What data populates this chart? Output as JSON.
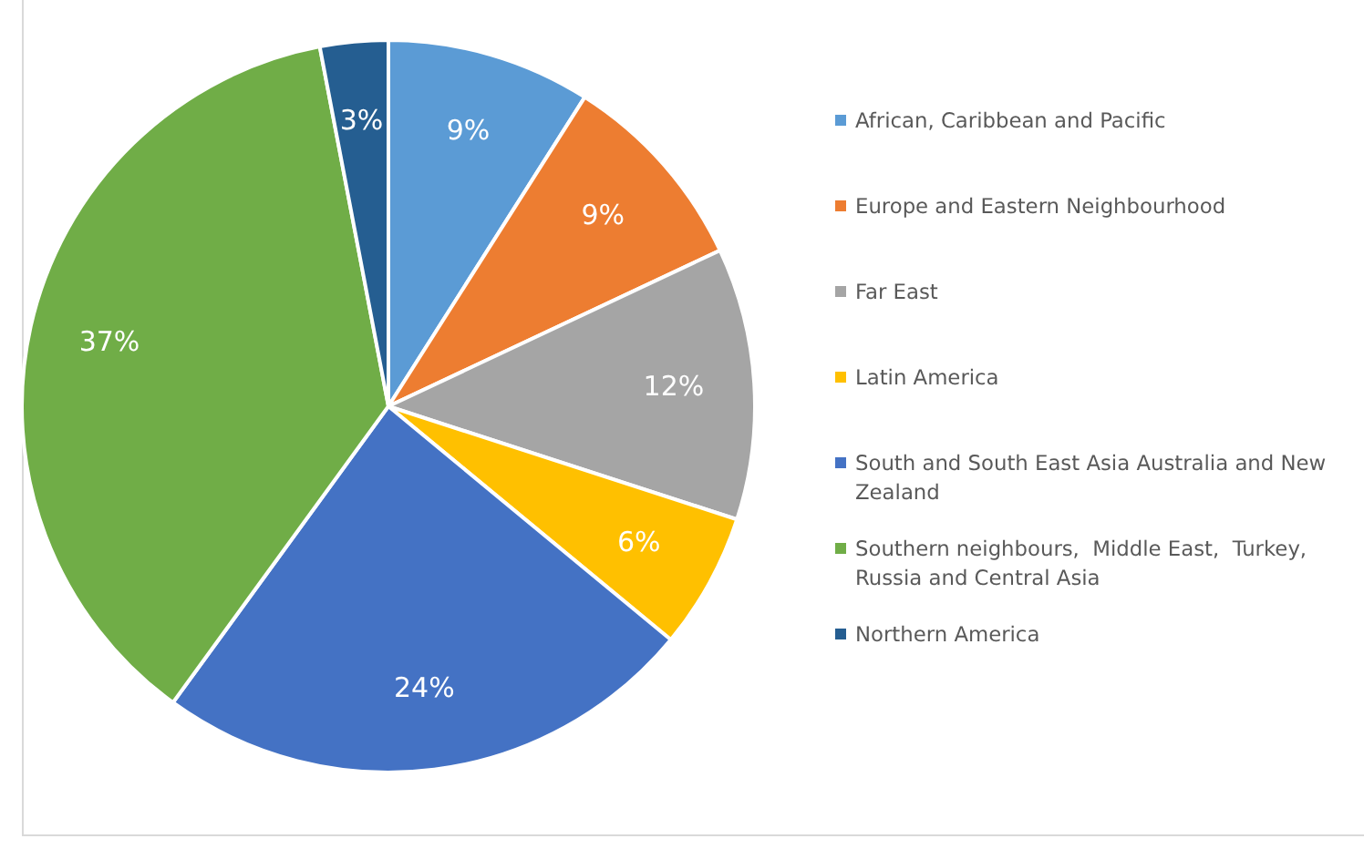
{
  "chart_data": {
    "type": "pie",
    "categories": [
      "African, Caribbean and Pacific",
      "Europe and Eastern Neighbourhood",
      "Far East",
      "Latin America",
      "South and South East Asia Australia and New Zealand",
      "Southern neighbours,  Middle East,  Turkey, Russia and Central Asia",
      "Northern America"
    ],
    "values": [
      9,
      9,
      12,
      6,
      24,
      37,
      3
    ],
    "colors": [
      "#5b9bd5",
      "#ed7d31",
      "#a5a5a5",
      "#ffc000",
      "#4472c4",
      "#70ad47",
      "#255e91"
    ],
    "value_labels": [
      "9%",
      "9%",
      "12%",
      "6%",
      "24%",
      "37%",
      "3%"
    ],
    "legend": "right"
  }
}
